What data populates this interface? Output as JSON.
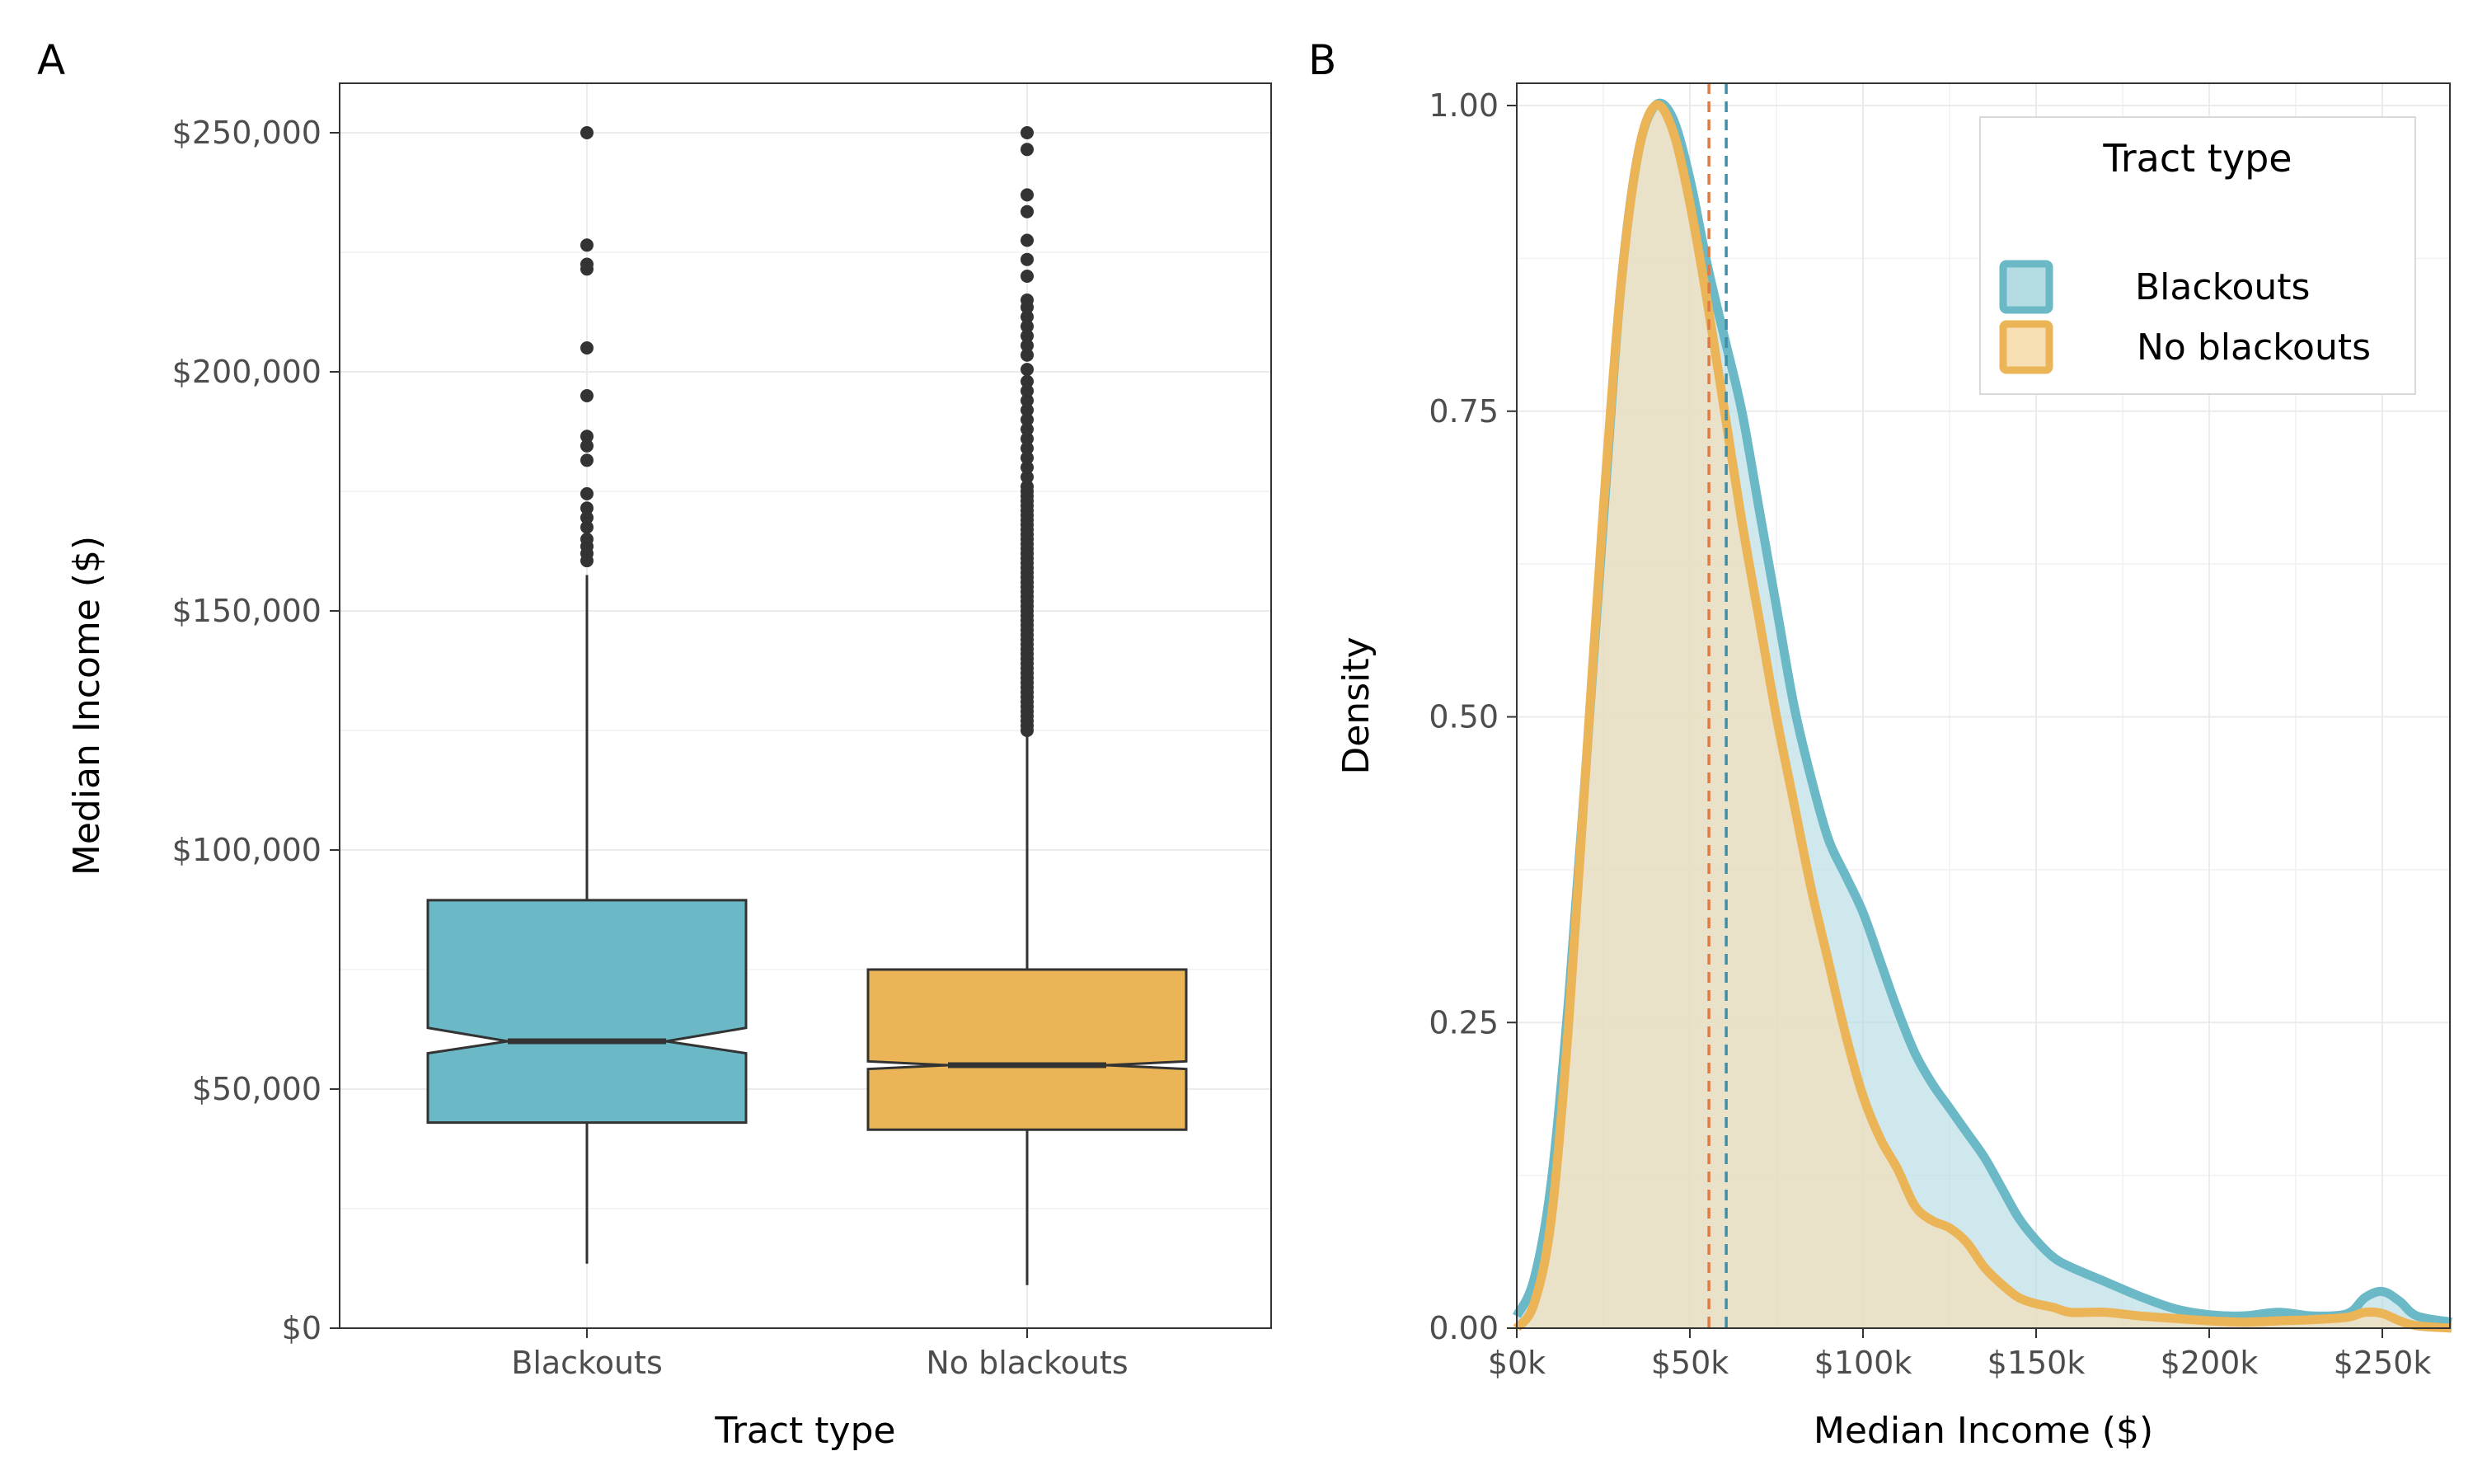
{
  "panels": {
    "a": {
      "tag": "A"
    },
    "b": {
      "tag": "B"
    }
  },
  "chart_data": [
    {
      "type": "box",
      "panel": "A",
      "notched": true,
      "xlabel": "Tract type",
      "ylabel": "Median Income ($)",
      "ylim": [
        0,
        260000
      ],
      "yticks": [
        0,
        50000,
        100000,
        150000,
        200000,
        250000
      ],
      "ytick_labels": [
        "$0",
        "$50,000",
        "$100,000",
        "$150,000",
        "$200,000",
        "$250,000"
      ],
      "categories": [
        "Blackouts",
        "No blackouts"
      ],
      "grid": true,
      "series": [
        {
          "name": "Blackouts",
          "color": "#6bb8c6",
          "whisker_low": 13500,
          "q1": 43000,
          "median": 60000,
          "q3": 89500,
          "whisker_high": 157500,
          "notch_low": 57500,
          "notch_high": 62800,
          "outliers": [
            160500,
            162000,
            163500,
            165000,
            167500,
            169500,
            171500,
            174500,
            181500,
            184500,
            186500,
            195000,
            205000,
            221500,
            222500,
            226500,
            250000
          ]
        },
        {
          "name": "No blackouts",
          "color": "#ebb456",
          "whisker_low": 9000,
          "q1": 41500,
          "median": 55000,
          "q3": 75000,
          "whisker_high": 124000,
          "notch_low": 54200,
          "notch_high": 55800,
          "outliers": [
            125000,
            126000,
            127000,
            128000,
            129000,
            130000,
            131000,
            132000,
            133000,
            134000,
            135000,
            136000,
            137000,
            138000,
            139000,
            140000,
            141000,
            142000,
            143000,
            144000,
            145000,
            146000,
            147000,
            148000,
            149000,
            150000,
            151000,
            152000,
            153000,
            154000,
            155000,
            156000,
            157000,
            158000,
            159000,
            160000,
            161000,
            162000,
            163000,
            164000,
            165000,
            166000,
            167000,
            168000,
            169000,
            170000,
            171000,
            172000,
            173000,
            174000,
            175000,
            176000,
            178000,
            180000,
            182000,
            184000,
            186000,
            188000,
            190000,
            192000,
            194000,
            196000,
            198000,
            200500,
            203500,
            205500,
            207500,
            209500,
            211500,
            213500,
            215000,
            220000,
            223500,
            227500,
            233500,
            237000,
            246500,
            250000
          ]
        }
      ]
    },
    {
      "type": "area",
      "panel": "B",
      "xlabel": "Median Income ($)",
      "ylabel": "Density",
      "xlim": [
        0,
        270000
      ],
      "ylim": [
        0,
        1.02
      ],
      "xticks": [
        0,
        50000,
        100000,
        150000,
        200000,
        250000
      ],
      "xtick_labels": [
        "$0k",
        "$50k",
        "$100k",
        "$150k",
        "$200k",
        "$250k"
      ],
      "yticks": [
        0,
        0.25,
        0.5,
        0.75,
        1.0
      ],
      "ytick_labels": [
        "0.00",
        "0.25",
        "0.50",
        "0.75",
        "1.00"
      ],
      "grid": true,
      "legend": {
        "title": "Tract type",
        "position": "top-right",
        "entries": [
          "Blackouts",
          "No blackouts"
        ]
      },
      "series": [
        {
          "name": "Blackouts",
          "line_color": "#6bb8c6",
          "fill_color": "#b5dbe3",
          "mean_line_x": 60500,
          "x": [
            0,
            5000,
            10000,
            15000,
            20000,
            25000,
            30000,
            35000,
            40000,
            45000,
            50000,
            55000,
            60000,
            65000,
            70000,
            75000,
            80000,
            85000,
            90000,
            95000,
            100000,
            105000,
            110000,
            115000,
            120000,
            125000,
            130000,
            135000,
            140000,
            145000,
            150000,
            155000,
            160000,
            170000,
            180000,
            190000,
            200000,
            210000,
            220000,
            230000,
            240000,
            245000,
            250000,
            255000,
            260000,
            270000
          ],
          "y": [
            0.01,
            0.04,
            0.12,
            0.27,
            0.46,
            0.66,
            0.85,
            0.96,
            1.0,
            0.99,
            0.94,
            0.87,
            0.81,
            0.75,
            0.67,
            0.59,
            0.51,
            0.45,
            0.4,
            0.37,
            0.34,
            0.3,
            0.26,
            0.225,
            0.2,
            0.18,
            0.16,
            0.14,
            0.115,
            0.09,
            0.072,
            0.058,
            0.05,
            0.038,
            0.026,
            0.016,
            0.011,
            0.01,
            0.013,
            0.01,
            0.012,
            0.025,
            0.03,
            0.022,
            0.01,
            0.005
          ]
        },
        {
          "name": "No blackouts",
          "line_color": "#ebb456",
          "fill_color": "#f7dfb4",
          "mean_line_x": 55500,
          "x": [
            0,
            5000,
            10000,
            15000,
            20000,
            25000,
            30000,
            35000,
            40000,
            45000,
            50000,
            55000,
            60000,
            65000,
            70000,
            75000,
            80000,
            85000,
            90000,
            95000,
            100000,
            105000,
            110000,
            115000,
            120000,
            125000,
            130000,
            135000,
            140000,
            145000,
            150000,
            155000,
            160000,
            170000,
            180000,
            190000,
            200000,
            210000,
            220000,
            230000,
            240000,
            245000,
            250000,
            255000,
            260000,
            270000
          ],
          "y": [
            0.0,
            0.02,
            0.09,
            0.25,
            0.46,
            0.67,
            0.85,
            0.96,
            1.0,
            0.98,
            0.92,
            0.84,
            0.75,
            0.66,
            0.58,
            0.5,
            0.43,
            0.36,
            0.3,
            0.24,
            0.19,
            0.155,
            0.13,
            0.1,
            0.088,
            0.082,
            0.07,
            0.05,
            0.036,
            0.025,
            0.02,
            0.017,
            0.013,
            0.013,
            0.01,
            0.008,
            0.006,
            0.005,
            0.006,
            0.007,
            0.009,
            0.013,
            0.012,
            0.006,
            0.002,
            0.0
          ]
        }
      ]
    }
  ]
}
